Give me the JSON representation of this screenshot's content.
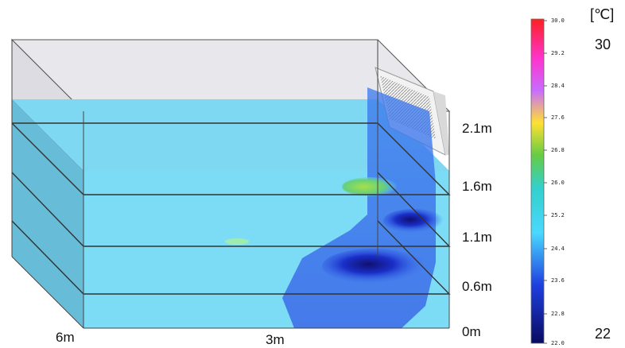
{
  "room": {
    "height_labels": [
      "2.1m",
      "1.6m",
      "1.1m",
      "0.6m",
      "0m"
    ],
    "axis_labels": {
      "depth": "6m",
      "width": "3m"
    }
  },
  "colorbar": {
    "unit": "[℃]",
    "max_label": "30",
    "min_label": "22",
    "ticks": [
      "30.0",
      "29.2",
      "28.4",
      "27.6",
      "26.8",
      "26.0",
      "25.2",
      "24.4",
      "23.6",
      "22.8",
      "22.0"
    ],
    "colors": [
      "#ff2020",
      "#ff33cc",
      "#d04dff",
      "#ffdd33",
      "#55cc44",
      "#33ccee",
      "#44ddff",
      "#1a33dd",
      "#0a0a6a"
    ]
  }
}
